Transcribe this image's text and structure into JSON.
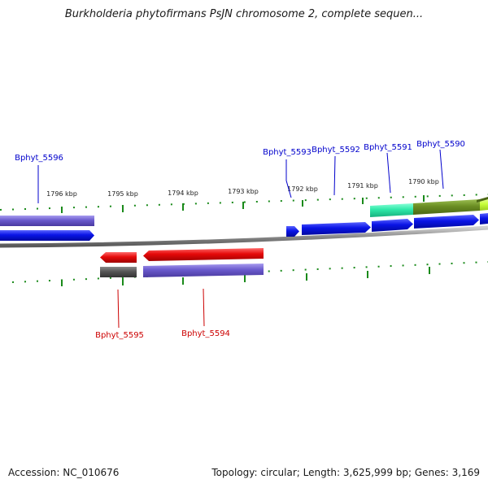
{
  "title": "Burkholderia phytofirmans PsJN chromosome 2, complete sequen...",
  "footer": {
    "accession": "Accession: NC_010676",
    "summary": "Topology: circular; Length: 3,625,999 bp; Genes: 3,169"
  },
  "ticks": [
    {
      "label": "1796 kbp"
    },
    {
      "label": "1795 kbp"
    },
    {
      "label": "1794 kbp"
    },
    {
      "label": "1793 kbp"
    },
    {
      "label": "1792 kbp"
    },
    {
      "label": "1791 kbp"
    },
    {
      "label": "1790 kbp"
    }
  ],
  "genes": [
    {
      "label": "Bphyt_5596",
      "strand": "+",
      "color": "#0000cc"
    },
    {
      "label": "Bphyt_5593",
      "strand": "+",
      "color": "#0000cc"
    },
    {
      "label": "Bphyt_5592",
      "strand": "+",
      "color": "#0000cc"
    },
    {
      "label": "Bphyt_5591",
      "strand": "+",
      "color": "#0000cc"
    },
    {
      "label": "Bphyt_5590",
      "strand": "+",
      "color": "#0000cc"
    },
    {
      "label": "Bphyt_5595",
      "strand": "-",
      "color": "#cc0000"
    },
    {
      "label": "Bphyt_5594",
      "strand": "-",
      "color": "#cc0000"
    }
  ],
  "colors": {
    "forward_cds": "#0a14e6",
    "reverse_cds": "#e60a0a",
    "gene_feature": "#6a5acd",
    "gene_feature_dark": "#555555",
    "misc_feature_teal": "#2ee8a8",
    "misc_feature_olive": "#6b8e23",
    "misc_feature_lime": "#c8ff3c",
    "tick": "#1a8a1a",
    "backbone": "#8a8a8a"
  }
}
